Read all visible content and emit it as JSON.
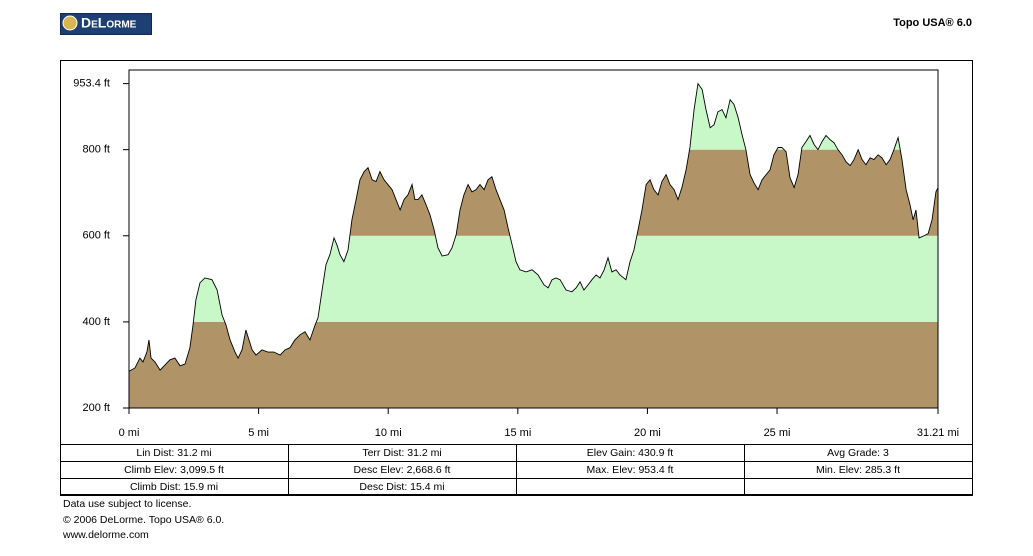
{
  "header": {
    "logo": "DeLorme",
    "product": "Topo USA® 6.0"
  },
  "chart_data": {
    "type": "area",
    "x": [
      0,
      0.23,
      0.42,
      0.54,
      0.69,
      0.77,
      0.85,
      1.0,
      1.2,
      1.39,
      1.58,
      1.77,
      1.97,
      2.16,
      2.35,
      2.47,
      2.58,
      2.74,
      2.93,
      3.2,
      3.4,
      3.59,
      3.74,
      3.9,
      4.09,
      4.21,
      4.36,
      4.51,
      4.63,
      4.75,
      4.9,
      5.13,
      5.36,
      5.59,
      5.83,
      6.02,
      6.21,
      6.4,
      6.6,
      6.79,
      6.98,
      7.18,
      7.29,
      7.45,
      7.6,
      7.75,
      7.91,
      8.02,
      8.14,
      8.29,
      8.45,
      8.6,
      8.76,
      8.91,
      9.07,
      9.22,
      9.38,
      9.53,
      9.68,
      9.84,
      9.99,
      10.15,
      10.3,
      10.46,
      10.61,
      10.76,
      10.92,
      11.03,
      11.15,
      11.3,
      11.46,
      11.61,
      11.77,
      11.92,
      12.08,
      12.31,
      12.46,
      12.62,
      12.77,
      12.92,
      13.08,
      13.23,
      13.39,
      13.54,
      13.7,
      13.85,
      14.0,
      14.16,
      14.31,
      14.47,
      14.62,
      14.78,
      14.93,
      15.08,
      15.32,
      15.55,
      15.78,
      16.01,
      16.17,
      16.32,
      16.47,
      16.63,
      16.86,
      17.09,
      17.25,
      17.4,
      17.55,
      17.71,
      17.86,
      18.02,
      18.17,
      18.33,
      18.48,
      18.63,
      18.79,
      18.94,
      19.17,
      19.33,
      19.48,
      19.64,
      19.79,
      19.95,
      20.1,
      20.25,
      20.41,
      20.56,
      20.72,
      20.87,
      21.03,
      21.18,
      21.33,
      21.49,
      21.64,
      21.8,
      21.95,
      22.11,
      22.26,
      22.42,
      22.57,
      22.72,
      22.88,
      23.03,
      23.19,
      23.34,
      23.5,
      23.65,
      23.8,
      23.96,
      24.11,
      24.27,
      24.42,
      24.58,
      24.73,
      24.88,
      25.04,
      25.19,
      25.35,
      25.5,
      25.66,
      25.81,
      25.96,
      26.12,
      26.27,
      26.43,
      26.58,
      26.74,
      26.89,
      27.05,
      27.2,
      27.35,
      27.51,
      27.66,
      27.82,
      27.97,
      28.13,
      28.28,
      28.43,
      28.59,
      28.74,
      28.9,
      29.05,
      29.21,
      29.36,
      29.51,
      29.67,
      29.82,
      29.98,
      30.13,
      30.25,
      30.36,
      30.48,
      30.67,
      30.83,
      30.98,
      31.13,
      31.21
    ],
    "values": [
      285.3,
      293,
      316,
      307,
      330,
      358,
      316,
      307,
      288,
      300,
      312,
      316,
      298,
      302,
      340,
      393,
      451,
      491,
      502,
      498,
      474,
      416,
      393,
      358,
      330,
      316,
      335,
      381,
      358,
      335,
      323,
      335,
      330,
      330,
      323,
      335,
      340,
      358,
      370,
      377,
      358,
      393,
      409,
      474,
      533,
      556,
      595,
      579,
      556,
      540,
      567,
      637,
      684,
      730,
      749,
      758,
      730,
      726,
      749,
      730,
      719,
      707,
      684,
      660,
      684,
      695,
      719,
      684,
      684,
      695,
      672,
      649,
      614,
      572,
      553,
      556,
      572,
      602,
      660,
      695,
      719,
      702,
      707,
      719,
      707,
      730,
      737,
      707,
      684,
      660,
      619,
      579,
      540,
      521,
      516,
      521,
      509,
      486,
      479,
      498,
      502,
      498,
      474,
      470,
      479,
      493,
      474,
      486,
      498,
      509,
      502,
      521,
      549,
      516,
      521,
      509,
      498,
      540,
      567,
      614,
      660,
      719,
      730,
      707,
      695,
      726,
      742,
      719,
      707,
      684,
      712,
      753,
      805,
      893,
      953.4,
      940,
      893,
      851,
      858,
      888,
      893,
      874,
      916,
      905,
      874,
      835,
      800,
      742,
      723,
      707,
      730,
      742,
      753,
      788,
      805,
      805,
      795,
      735,
      712,
      742,
      805,
      819,
      833,
      812,
      800,
      819,
      833,
      823,
      816,
      800,
      788,
      772,
      763,
      777,
      800,
      777,
      765,
      781,
      777,
      788,
      781,
      765,
      777,
      800,
      828,
      777,
      707,
      672,
      637,
      660,
      595,
      600,
      605,
      637,
      702,
      712
    ],
    "xlim": [
      0,
      31.21
    ],
    "xticks": [
      {
        "value": 0,
        "label": "0 mi"
      },
      {
        "value": 5,
        "label": "5 mi"
      },
      {
        "value": 10,
        "label": "10 mi"
      },
      {
        "value": 15,
        "label": "15 mi"
      },
      {
        "value": 20,
        "label": "20 mi"
      },
      {
        "value": 25,
        "label": "25 mi"
      },
      {
        "value": 31.21,
        "label": "31.21 mi"
      }
    ],
    "ylim": [
      200,
      985
    ],
    "yticks": [
      {
        "value": 200,
        "label": "200 ft"
      },
      {
        "value": 400,
        "label": "400 ft"
      },
      {
        "value": 600,
        "label": "600 ft"
      },
      {
        "value": 800,
        "label": "800 ft"
      },
      {
        "value": 953.4,
        "label": "953.4 ft"
      }
    ],
    "band_colors": [
      "#b09468",
      "#c8f8c8"
    ],
    "line_color": "#000000"
  },
  "stats": [
    [
      "Lin Dist: 31.2 mi",
      "Terr Dist: 31.2 mi",
      "Elev Gain: 430.9 ft",
      "Avg Grade: 3"
    ],
    [
      "Climb Elev: 3,099.5 ft",
      "Desc Elev: 2,668.6 ft",
      "Max. Elev: 953.4 ft",
      "Min. Elev: 285.3 ft"
    ],
    [
      "Climb Dist: 15.9 mi",
      "Desc Dist: 15.4 mi"
    ]
  ],
  "footer": [
    "Data use subject to license.",
    "© 2006 DeLorme. Topo USA® 6.0.",
    "www.delorme.com"
  ]
}
